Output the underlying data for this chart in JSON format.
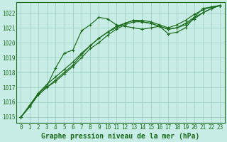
{
  "x": [
    0,
    1,
    2,
    3,
    4,
    5,
    6,
    7,
    8,
    9,
    10,
    11,
    12,
    13,
    14,
    15,
    16,
    17,
    18,
    19,
    20,
    21,
    22,
    23
  ],
  "line1": [
    1015.0,
    1015.7,
    1016.6,
    1017.1,
    1018.3,
    1019.3,
    1019.5,
    1020.8,
    1021.2,
    1021.7,
    1021.6,
    1021.2,
    1021.1,
    1021.0,
    1020.9,
    1021.0,
    1021.1,
    1020.6,
    1020.7,
    1021.0,
    1021.7,
    1022.3,
    1022.4,
    1022.5
  ],
  "line2": [
    1015.0,
    1015.7,
    1016.5,
    1017.0,
    1017.5,
    1018.0,
    1018.5,
    1019.2,
    1019.8,
    1020.3,
    1020.7,
    1021.1,
    1021.3,
    1021.5,
    1021.5,
    1021.4,
    1021.2,
    1021.0,
    1021.2,
    1021.5,
    1021.9,
    1022.2,
    1022.4,
    1022.5
  ],
  "line3": [
    1015.0,
    1015.8,
    1016.6,
    1017.2,
    1017.7,
    1018.2,
    1018.7,
    1019.3,
    1019.8,
    1020.3,
    1020.7,
    1021.0,
    1021.3,
    1021.5,
    1021.4,
    1021.3,
    1021.1,
    1020.9,
    1021.0,
    1021.3,
    1021.7,
    1022.0,
    1022.3,
    1022.5
  ],
  "line4": [
    1015.0,
    1015.7,
    1016.5,
    1017.0,
    1017.4,
    1017.9,
    1018.4,
    1019.0,
    1019.6,
    1020.0,
    1020.5,
    1020.9,
    1021.2,
    1021.4,
    1021.4,
    1021.3,
    1021.1,
    1020.9,
    1021.0,
    1021.2,
    1021.6,
    1022.0,
    1022.3,
    1022.5
  ],
  "ylim": [
    1014.6,
    1022.7
  ],
  "yticks": [
    1015,
    1016,
    1017,
    1018,
    1019,
    1020,
    1021,
    1022
  ],
  "xticks": [
    0,
    1,
    2,
    3,
    4,
    5,
    6,
    7,
    8,
    9,
    10,
    11,
    12,
    13,
    14,
    15,
    16,
    17,
    18,
    19,
    20,
    21,
    22,
    23
  ],
  "line_color": "#1a6b1a",
  "marker": "+",
  "bg_plot": "#c8ece6",
  "bg_fig": "#c8ece6",
  "grid_color": "#99ccbb",
  "xlabel": "Graphe pression niveau de la mer (hPa)",
  "xlabel_color": "#1a6b1a",
  "xlabel_fontsize": 7,
  "tick_color": "#1a6b1a",
  "tick_fontsize": 5.5,
  "border_color": "#1a6b1a"
}
